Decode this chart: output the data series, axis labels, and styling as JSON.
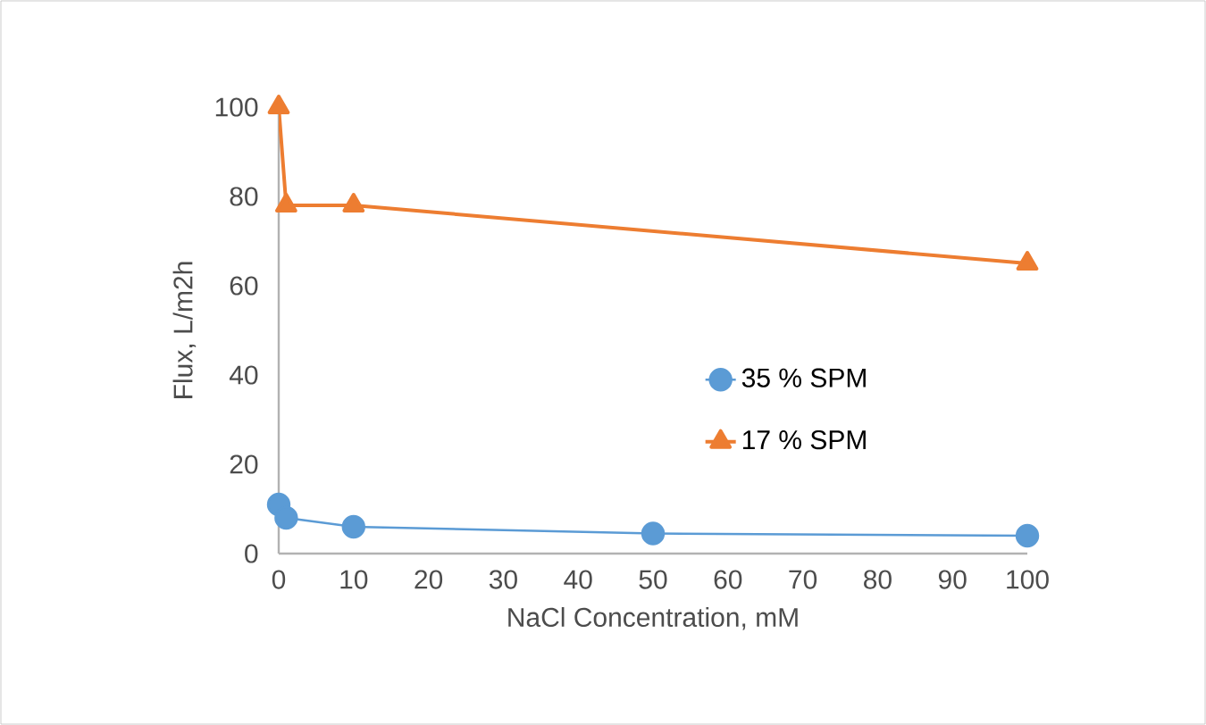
{
  "chart_data": {
    "type": "line",
    "xlabel": "NaCl Concentration, mM",
    "ylabel": "Flux, L/m2h",
    "xlim": [
      0,
      100
    ],
    "xticks": [
      0,
      10,
      20,
      30,
      40,
      50,
      60,
      70,
      80,
      90,
      100
    ],
    "ylim": [
      0,
      100
    ],
    "yticks": [
      0,
      20,
      40,
      60,
      80,
      100
    ],
    "grid": false,
    "legend": "right",
    "series": [
      {
        "name": "35 % SPM",
        "color": "#5b9bd5",
        "marker": "circle",
        "x": [
          0,
          1,
          10,
          50,
          100
        ],
        "values": [
          11,
          8,
          6,
          4.5,
          4
        ]
      },
      {
        "name": "17 % SPM",
        "color": "#ed7d31",
        "marker": "triangle",
        "x": [
          0,
          1,
          10,
          100
        ],
        "values": [
          100,
          78,
          78,
          65
        ]
      }
    ]
  }
}
